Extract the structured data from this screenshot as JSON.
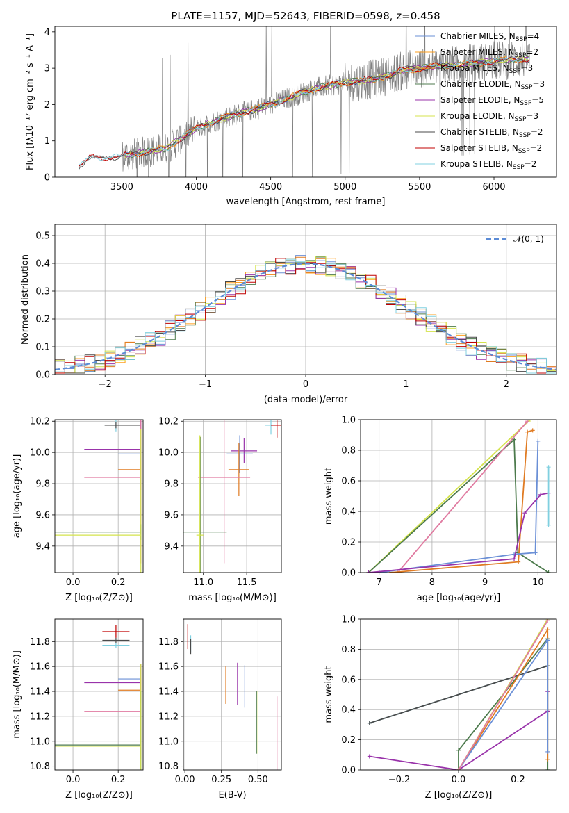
{
  "title": "PLATE=1157, MJD=52643, FIBERID=0598, z=0.458",
  "colors": {
    "Chabrier MILES": "#6a8fd6",
    "Salpeter MILES": "#ff9f1c",
    "Kroupa MILES": "#e07b22",
    "Chabrier ELODIE": "#4c7a4c",
    "Salpeter ELODIE": "#9933aa",
    "Kroupa ELODIE": "#d4e34c",
    "Chabrier STELIB": "#4a4a4a",
    "Salpeter STELIB": "#c00000",
    "Kroupa STELIB": "#80d0e0",
    "pink": "#e07aa0",
    "lime": "#9acd32",
    "data": "#808080",
    "gauss": "#5b8bd6"
  },
  "chart_data": [
    {
      "id": "spectrum",
      "type": "line",
      "xlabel": "wavelength [Angstrom, rest frame]",
      "ylabel": "Flux [f_λ 10^-17 erg cm^-2 s^-1 A^-1]",
      "xlim": [
        3050,
        6420
      ],
      "ylim": [
        0,
        4.15
      ],
      "xticks": [
        "3500",
        "4000",
        "4500",
        "5000",
        "5500",
        "6000"
      ],
      "yticks": [
        "0",
        "1",
        "2",
        "3",
        "4"
      ],
      "legend": [
        {
          "label": "Chabrier MILES, N",
          "sub": "SSP",
          "tail": "=4",
          "color": "Chabrier MILES"
        },
        {
          "label": "Salpeter MILES, N",
          "sub": "SSP",
          "tail": "=2",
          "color": "Salpeter MILES"
        },
        {
          "label": "Kroupa MILES, N",
          "sub": "SSP",
          "tail": "=3",
          "color": "Kroupa MILES"
        },
        {
          "label": "Chabrier ELODIE, N",
          "sub": "SSP",
          "tail": "=3",
          "color": "Chabrier ELODIE"
        },
        {
          "label": "Salpeter ELODIE, N",
          "sub": "SSP",
          "tail": "=5",
          "color": "Salpeter ELODIE"
        },
        {
          "label": "Kroupa ELODIE, N",
          "sub": "SSP",
          "tail": "=3",
          "color": "Kroupa ELODIE"
        },
        {
          "label": "Chabrier STELIB, N",
          "sub": "SSP",
          "tail": "=2",
          "color": "Chabrier STELIB"
        },
        {
          "label": "Salpeter STELIB, N",
          "sub": "SSP",
          "tail": "=2",
          "color": "Salpeter STELIB"
        },
        {
          "label": "Kroupa STELIB, N",
          "sub": "SSP",
          "tail": "=2",
          "color": "Kroupa STELIB"
        }
      ],
      "continuum": {
        "x": [
          3210,
          3300,
          3450,
          3600,
          3800,
          4000,
          4200,
          4500,
          4800,
          5000,
          5200,
          5400,
          5600,
          5800,
          6000,
          6200
        ],
        "y": [
          0.3,
          0.55,
          0.55,
          0.65,
          0.8,
          1.35,
          1.65,
          2.0,
          2.45,
          2.6,
          2.7,
          2.95,
          3.05,
          3.1,
          3.2,
          3.25
        ]
      }
    },
    {
      "id": "residuals",
      "type": "line",
      "xlabel": "(data-model)/error",
      "ylabel": "Normed distribution",
      "xlim": [
        -2.5,
        2.5
      ],
      "ylim": [
        0,
        0.54
      ],
      "xticks": [
        "−2",
        "−1",
        "0",
        "1",
        "2"
      ],
      "yticks": [
        "0.0",
        "0.1",
        "0.2",
        "0.3",
        "0.4",
        "0.5"
      ],
      "legend": "N(0,1)"
    },
    {
      "id": "age_vs_Z",
      "type": "scatter",
      "xlabel": "Z [log10(Z/Z⊙)]",
      "ylabel": "age [log10(age/yr)]",
      "xlim": [
        -0.08,
        0.31
      ],
      "ylim": [
        9.23,
        10.21
      ],
      "xticks": [
        "0.0",
        "0.2"
      ],
      "yticks": [
        "9.4",
        "9.6",
        "9.8",
        "10.0",
        "10.2"
      ],
      "points": [
        {
          "x": 0.19,
          "y": 10.175,
          "xerr": [
            0.05,
            0.11
          ],
          "yerr": 0.04,
          "color": "Kroupa STELIB"
        },
        {
          "x": 0.19,
          "y": 10.175,
          "xerr": [
            0.05,
            0.11
          ],
          "yerr": 0.02,
          "color": "Chabrier STELIB"
        },
        {
          "x": 0.3,
          "y": 10.02,
          "xerr": [
            0.25,
            0.0
          ],
          "yerr": 0.26,
          "color": "Salpeter ELODIE"
        },
        {
          "x": 0.3,
          "y": 9.99,
          "xerr": [
            0.1,
            0.0
          ],
          "yerr": 0.05,
          "color": "Chabrier MILES"
        },
        {
          "x": 0.3,
          "y": 9.89,
          "xerr": [
            0.1,
            0.0
          ],
          "yerr": 0.06,
          "color": "Kroupa MILES"
        },
        {
          "x": 0.3,
          "y": 9.84,
          "xerr": [
            0.25,
            0.0
          ],
          "yerr": 0.55,
          "color": "pink"
        },
        {
          "x": 0.3,
          "y": 9.49,
          "xerr": [
            0.38,
            0.0
          ],
          "yerr": 0.05,
          "color": "Chabrier ELODIE"
        },
        {
          "x": 0.3,
          "y": 9.47,
          "xerr": [
            0.38,
            0.0
          ],
          "yerr": 0.68,
          "color": "Kroupa ELODIE"
        }
      ]
    },
    {
      "id": "age_vs_mass",
      "type": "scatter",
      "xlabel": "mass [log10(M/M⊙)]",
      "ylabel": "",
      "xlim": [
        10.77,
        11.9
      ],
      "ylim": [
        9.23,
        10.21
      ],
      "xticks": [
        "11.0",
        "11.5"
      ],
      "yticks": [
        "9.4",
        "9.6",
        "9.8",
        "10.0",
        "10.2"
      ],
      "points": [
        {
          "x": 11.78,
          "y": 10.175,
          "xerr": 0.07,
          "yerr": 0.06,
          "color": "Kroupa STELIB"
        },
        {
          "x": 11.85,
          "y": 10.175,
          "xerr": 0.07,
          "yerr": 0.08,
          "color": "Salpeter STELIB"
        },
        {
          "x": 11.47,
          "y": 10.01,
          "xerr": 0.15,
          "yerr": 0.08,
          "color": "Salpeter ELODIE"
        },
        {
          "x": 11.42,
          "y": 9.99,
          "xerr": 0.15,
          "yerr": 0.12,
          "color": "Chabrier MILES"
        },
        {
          "x": 11.41,
          "y": 9.89,
          "xerr": 0.12,
          "yerr": 0.17,
          "color": "Kroupa MILES"
        },
        {
          "x": 11.24,
          "y": 9.84,
          "xerr": 0.3,
          "yerr": 0.55,
          "color": "pink"
        },
        {
          "x": 10.97,
          "y": 9.49,
          "xerr": 0.3,
          "yerr": 0.61,
          "color": "Chabrier ELODIE"
        },
        {
          "x": 10.96,
          "y": 9.47,
          "xerr": 0.04,
          "yerr": 0.64,
          "color": "Kroupa ELODIE"
        }
      ]
    },
    {
      "id": "weight_vs_age",
      "type": "line",
      "xlabel": "age [log10(age/yr)]",
      "ylabel": "mass weight",
      "xlim": [
        6.65,
        10.35
      ],
      "ylim": [
        0,
        1.0
      ],
      "xticks": [
        "7",
        "8",
        "9",
        "10"
      ],
      "yticks": [
        "0.0",
        "0.2",
        "0.4",
        "0.6",
        "0.8",
        "1.0"
      ],
      "series": [
        {
          "color": "Kroupa ELODIE",
          "x": [
            6.8,
            9.85
          ],
          "y": [
            0.0,
            1.0
          ]
        },
        {
          "color": "Chabrier ELODIE",
          "x": [
            6.8,
            9.55,
            9.62,
            10.2
          ],
          "y": [
            0.0,
            0.87,
            0.13,
            0.0
          ]
        },
        {
          "color": "pink",
          "x": [
            7.35,
            9.8
          ],
          "y": [
            0.0,
            0.99
          ]
        },
        {
          "color": "Kroupa MILES",
          "x": [
            7.2,
            9.63,
            9.8,
            9.9
          ],
          "y": [
            0.0,
            0.07,
            0.92,
            0.93
          ]
        },
        {
          "color": "Chabrier MILES",
          "x": [
            7.0,
            9.55,
            9.95,
            10.0
          ],
          "y": [
            0.0,
            0.12,
            0.13,
            0.86
          ]
        },
        {
          "color": "Salpeter ELODIE",
          "x": [
            6.8,
            9.55,
            9.75,
            10.05,
            10.2
          ],
          "y": [
            0.0,
            0.09,
            0.39,
            0.51,
            0.52
          ]
        },
        {
          "color": "Kroupa STELIB",
          "x": [
            10.2,
            10.2
          ],
          "y": [
            0.31,
            0.69
          ]
        }
      ]
    },
    {
      "id": "mass_vs_Z",
      "type": "scatter",
      "xlabel": "Z [log10(Z/Z⊙)]",
      "ylabel": "mass [log10(M/M⊙)]",
      "xlim": [
        -0.08,
        0.31
      ],
      "ylim": [
        10.77,
        11.98
      ],
      "xticks": [
        "0.0",
        "0.2"
      ],
      "yticks": [
        "10.8",
        "11.0",
        "11.2",
        "11.4",
        "11.6",
        "11.8"
      ],
      "points": [
        {
          "x": 0.19,
          "y": 11.88,
          "xerr": 0.06,
          "yerr": 0.05,
          "color": "Salpeter STELIB"
        },
        {
          "x": 0.19,
          "y": 11.81,
          "xerr": 0.06,
          "yerr": 0.02,
          "color": "Chabrier STELIB"
        },
        {
          "x": 0.19,
          "y": 11.77,
          "xerr": 0.06,
          "yerr": 0.02,
          "color": "Kroupa STELIB"
        },
        {
          "x": 0.3,
          "y": 11.47,
          "xerr": [
            0.25,
            0.0
          ],
          "yerr": 0.15,
          "color": "Salpeter ELODIE"
        },
        {
          "x": 0.3,
          "y": 11.5,
          "xerr": [
            0.1,
            0.0
          ],
          "yerr": 0.12,
          "color": "Chabrier MILES"
        },
        {
          "x": 0.3,
          "y": 11.41,
          "xerr": [
            0.1,
            0.0
          ],
          "yerr": 0.1,
          "color": "Kroupa MILES"
        },
        {
          "x": 0.3,
          "y": 11.24,
          "xerr": [
            0.25,
            0.0
          ],
          "yerr": 0.38,
          "color": "pink"
        },
        {
          "x": 0.3,
          "y": 10.97,
          "xerr": [
            0.38,
            0.0
          ],
          "yerr": 0.43,
          "color": "Chabrier ELODIE"
        },
        {
          "x": 0.3,
          "y": 10.96,
          "xerr": [
            0.38,
            0.0
          ],
          "yerr": 0.66,
          "color": "Kroupa ELODIE"
        }
      ]
    },
    {
      "id": "mass_vs_EBV",
      "type": "scatter",
      "xlabel": "E(B-V)",
      "ylabel": "",
      "xlim": [
        -0.01,
        0.66
      ],
      "ylim": [
        10.77,
        11.98
      ],
      "xticks": [
        "0.00",
        "0.25",
        "0.50"
      ],
      "yticks": [
        "10.8",
        "11.0",
        "11.2",
        "11.4",
        "11.6",
        "11.8"
      ],
      "points": [
        {
          "x": 0.02,
          "y": 11.84,
          "yerr": 0.1,
          "color": "Salpeter STELIB"
        },
        {
          "x": 0.04,
          "y": 11.78,
          "yerr": 0.07,
          "color": "Kroupa STELIB"
        },
        {
          "x": 0.04,
          "y": 11.76,
          "yerr": 0.06,
          "color": "Chabrier STELIB"
        },
        {
          "x": 0.28,
          "y": 11.45,
          "yerr": 0.15,
          "color": "Kroupa MILES"
        },
        {
          "x": 0.36,
          "y": 11.46,
          "yerr": 0.17,
          "color": "Salpeter ELODIE"
        },
        {
          "x": 0.41,
          "y": 11.44,
          "yerr": 0.17,
          "color": "Chabrier MILES"
        },
        {
          "x": 0.49,
          "y": 11.15,
          "yerr": 0.25,
          "color": "Chabrier ELODIE"
        },
        {
          "x": 0.5,
          "y": 11.15,
          "yerr": 0.25,
          "color": "Kroupa ELODIE"
        },
        {
          "x": 0.63,
          "y": 11.04,
          "yerr": 0.32,
          "color": "pink"
        }
      ]
    },
    {
      "id": "weight_vs_Z",
      "type": "line",
      "xlabel": "Z [log10(Z/Z⊙)]",
      "ylabel": "mass weight",
      "xlim": [
        -0.33,
        0.33
      ],
      "ylim": [
        0,
        1.0
      ],
      "xticks": [
        "−0.2",
        "0.0",
        "0.2"
      ],
      "yticks": [
        "0.0",
        "0.2",
        "0.4",
        "0.6",
        "0.8",
        "1.0"
      ],
      "series": [
        {
          "color": "Kroupa STELIB",
          "x": [
            -0.3,
            0.3
          ],
          "y": [
            0.31,
            0.69
          ]
        },
        {
          "color": "Chabrier STELIB",
          "x": [
            -0.3,
            0.3
          ],
          "y": [
            0.31,
            0.69
          ]
        },
        {
          "color": "Salpeter ELODIE",
          "x": [
            -0.3,
            0.0,
            0.3,
            0.3
          ],
          "y": [
            0.09,
            0.0,
            0.39,
            0.52
          ]
        },
        {
          "color": "Chabrier ELODIE",
          "x": [
            0.0,
            0.0,
            0.3,
            0.3
          ],
          "y": [
            0.0,
            0.13,
            0.87,
            0.0
          ]
        },
        {
          "color": "Kroupa MILES",
          "x": [
            0.0,
            0.3,
            0.3
          ],
          "y": [
            0.0,
            0.93,
            0.07
          ]
        },
        {
          "color": "Chabrier MILES",
          "x": [
            0.0,
            0.3,
            0.3
          ],
          "y": [
            0.0,
            0.86,
            0.12
          ]
        },
        {
          "color": "Kroupa ELODIE",
          "x": [
            0.0,
            0.3
          ],
          "y": [
            0.0,
            1.0
          ]
        },
        {
          "color": "pink",
          "x": [
            0.0,
            0.3
          ],
          "y": [
            0.0,
            0.99
          ]
        }
      ]
    }
  ]
}
